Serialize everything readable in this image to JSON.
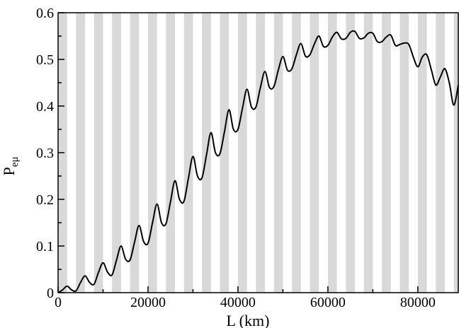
{
  "chart_data": {
    "type": "line",
    "title": "",
    "xlabel": "L (km)",
    "ylabel": "P",
    "ylabel_subscript": "eμ",
    "xlim": [
      0,
      89000
    ],
    "ylim": [
      0,
      0.6
    ],
    "x_ticks": [
      0,
      20000,
      40000,
      60000,
      80000
    ],
    "x_tick_labels": [
      "0",
      "20000",
      "40000",
      "60000",
      "80000"
    ],
    "y_ticks": [
      0,
      0.1,
      0.2,
      0.3,
      0.4,
      0.5,
      0.6
    ],
    "y_tick_labels": [
      "0",
      "0.1",
      "0.2",
      "0.3",
      "0.4",
      "0.5",
      "0.6"
    ],
    "grid": false,
    "background_band_period_km": 4000,
    "band_color": "#d9d9d9",
    "line_color": "#000000",
    "series": [
      {
        "x": [
          0,
          1000,
          2000,
          3000,
          4000,
          5000,
          6000,
          7000,
          8000,
          9000,
          10000,
          11000,
          12000,
          13000,
          14000,
          15000,
          16000,
          17000,
          18000,
          19000,
          20000,
          21000,
          22000,
          23000,
          24000,
          25000,
          26000,
          27000,
          28000,
          29000,
          30000,
          31000,
          32000,
          33000,
          34000,
          35000,
          36000,
          37000,
          38000,
          39000,
          40000,
          41000,
          42000,
          43000,
          44000,
          45000,
          46000,
          47000,
          48000,
          49000,
          50000,
          51000,
          52000,
          53000,
          54000,
          55000,
          56000,
          57000,
          58000,
          59000,
          60000,
          61000,
          62000,
          63000,
          64000,
          65000,
          66000,
          67000,
          68000,
          69000,
          70000,
          71000,
          72000,
          73000,
          74000,
          75000,
          76000,
          77000,
          78000,
          79000,
          80000,
          81000,
          82000,
          83000,
          84000,
          85000,
          86000,
          87000,
          88000,
          89000
        ],
        "y": [
          0,
          0.006,
          0.014,
          0.006,
          0.004,
          0.022,
          0.036,
          0.022,
          0.018,
          0.044,
          0.064,
          0.044,
          0.038,
          0.07,
          0.1,
          0.072,
          0.07,
          0.108,
          0.144,
          0.11,
          0.106,
          0.15,
          0.19,
          0.15,
          0.148,
          0.195,
          0.24,
          0.2,
          0.196,
          0.246,
          0.292,
          0.25,
          0.246,
          0.295,
          0.343,
          0.3,
          0.298,
          0.345,
          0.392,
          0.35,
          0.35,
          0.395,
          0.436,
          0.398,
          0.398,
          0.44,
          0.474,
          0.44,
          0.442,
          0.478,
          0.506,
          0.477,
          0.48,
          0.51,
          0.534,
          0.507,
          0.51,
          0.533,
          0.55,
          0.528,
          0.53,
          0.548,
          0.558,
          0.544,
          0.545,
          0.558,
          0.56,
          0.545,
          0.546,
          0.556,
          0.556,
          0.538,
          0.538,
          0.548,
          0.552,
          0.53,
          0.532,
          0.535,
          0.532,
          0.505,
          0.484,
          0.505,
          0.51,
          0.478,
          0.445,
          0.462,
          0.48,
          0.45,
          0.402,
          0.445
        ]
      }
    ]
  }
}
